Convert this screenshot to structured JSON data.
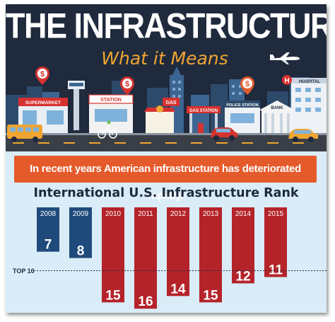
{
  "header": {
    "title": "THE INFRASTRUCTURE BILL",
    "subtitle": "What it Means"
  },
  "city_labels": {
    "supermarket": "SUPERMARKET",
    "station": "STATION",
    "gas": "GAS",
    "gas_station": "GAS STATION",
    "police_station": "POLICE STATION",
    "bank": "BANK",
    "hospital": "HOSPITAL",
    "hospital_letter": "H",
    "pin_symbol": "$"
  },
  "banner": {
    "text": "In recent years American infrastructure has deteriorated rapidly."
  },
  "chart_title": "International U.S. Infrastructure Rank",
  "colors": {
    "navy": "#1f2a3d",
    "blue_bar": "#1f4a7c",
    "red_bar": "#b5232a",
    "orange": "#e55a2b",
    "gold": "#f0a531",
    "sky": "#d9ecf7"
  },
  "chart_data": {
    "type": "bar",
    "title": "International U.S. Infrastructure Rank",
    "categories": [
      "2008",
      "2009",
      "2010",
      "2011",
      "2012",
      "2013",
      "2014",
      "2015"
    ],
    "values": [
      7,
      8,
      15,
      16,
      14,
      15,
      12,
      11
    ],
    "highlight_colors": [
      "blue",
      "blue",
      "red",
      "red",
      "red",
      "red",
      "red",
      "red"
    ],
    "reference_line": {
      "value": 10,
      "label": "TOP 10"
    },
    "axis_direction": "rank increases downward"
  }
}
